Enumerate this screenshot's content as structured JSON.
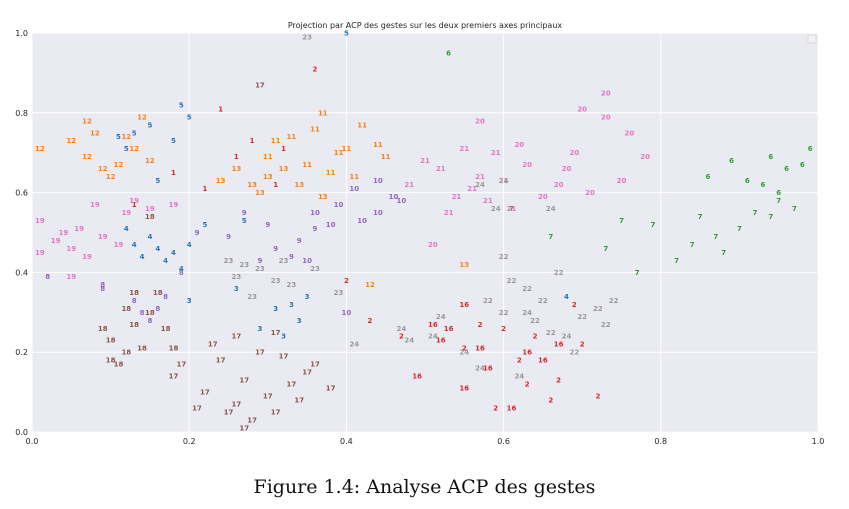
{
  "chart_data": {
    "type": "scatter",
    "title": "Projection par ACP des gestes sur les deux premiers axes principaux",
    "xlim": [
      0.0,
      1.0
    ],
    "ylim": [
      0.0,
      1.0
    ],
    "xticks": [
      "0.0",
      "0.2",
      "0.4",
      "0.6",
      "0.8",
      "1.0"
    ],
    "yticks": [
      "0.0",
      "0.2",
      "0.4",
      "0.6",
      "0.8",
      "1.0"
    ],
    "grid": true,
    "background": "#eaeaf2",
    "series": [
      {
        "label": "1",
        "color": "#d62728",
        "points": [
          [
            0.24,
            0.81
          ],
          [
            0.32,
            0.71
          ],
          [
            0.18,
            0.65
          ],
          [
            0.13,
            0.57
          ],
          [
            0.26,
            0.69
          ],
          [
            0.31,
            0.62
          ],
          [
            0.22,
            0.61
          ],
          [
            0.28,
            0.73
          ]
        ]
      },
      {
        "label": "2",
        "color": "#d62728",
        "points": [
          [
            0.36,
            0.91
          ],
          [
            0.4,
            0.38
          ],
          [
            0.62,
            0.18
          ],
          [
            0.66,
            0.08
          ],
          [
            0.7,
            0.22
          ],
          [
            0.57,
            0.27
          ],
          [
            0.59,
            0.06
          ],
          [
            0.64,
            0.24
          ],
          [
            0.55,
            0.21
          ],
          [
            0.67,
            0.13
          ],
          [
            0.63,
            0.12
          ],
          [
            0.72,
            0.09
          ],
          [
            0.47,
            0.24
          ],
          [
            0.69,
            0.32
          ],
          [
            0.43,
            0.28
          ],
          [
            0.6,
            0.26
          ]
        ]
      },
      {
        "label": "3",
        "color": "#1f77b4",
        "points": [
          [
            0.33,
            0.32
          ],
          [
            0.35,
            0.34
          ],
          [
            0.29,
            0.26
          ],
          [
            0.31,
            0.31
          ],
          [
            0.2,
            0.33
          ],
          [
            0.34,
            0.28
          ],
          [
            0.26,
            0.36
          ],
          [
            0.32,
            0.24
          ]
        ]
      },
      {
        "label": "4",
        "color": "#1f77b4",
        "points": [
          [
            0.15,
            0.49
          ],
          [
            0.14,
            0.44
          ],
          [
            0.18,
            0.45
          ],
          [
            0.16,
            0.46
          ],
          [
            0.12,
            0.51
          ],
          [
            0.17,
            0.43
          ],
          [
            0.2,
            0.47
          ],
          [
            0.68,
            0.34
          ],
          [
            0.13,
            0.47
          ],
          [
            0.19,
            0.41
          ]
        ]
      },
      {
        "label": "5",
        "color": "#1f77b4",
        "points": [
          [
            0.19,
            0.82
          ],
          [
            0.11,
            0.74
          ],
          [
            0.15,
            0.77
          ],
          [
            0.18,
            0.73
          ],
          [
            0.12,
            0.71
          ],
          [
            0.2,
            0.79
          ],
          [
            0.16,
            0.63
          ],
          [
            0.13,
            0.75
          ],
          [
            0.27,
            0.53
          ],
          [
            0.22,
            0.52
          ],
          [
            0.4,
            1.0
          ]
        ]
      },
      {
        "label": "6",
        "color": "#2ca02c",
        "points": [
          [
            0.53,
            0.95
          ],
          [
            0.86,
            0.64
          ],
          [
            0.93,
            0.62
          ],
          [
            0.96,
            0.66
          ],
          [
            0.99,
            0.71
          ],
          [
            0.89,
            0.68
          ],
          [
            0.95,
            0.6
          ],
          [
            0.91,
            0.63
          ],
          [
            0.94,
            0.69
          ],
          [
            0.98,
            0.67
          ]
        ]
      },
      {
        "label": "7",
        "color": "#2ca02c",
        "points": [
          [
            0.75,
            0.53
          ],
          [
            0.92,
            0.55
          ],
          [
            0.87,
            0.49
          ],
          [
            0.95,
            0.58
          ],
          [
            0.9,
            0.51
          ],
          [
            0.82,
            0.43
          ],
          [
            0.84,
            0.47
          ],
          [
            0.73,
            0.46
          ],
          [
            0.77,
            0.4
          ],
          [
            0.94,
            0.54
          ],
          [
            0.88,
            0.45
          ],
          [
            0.61,
            0.56
          ],
          [
            0.66,
            0.49
          ],
          [
            0.97,
            0.56
          ],
          [
            0.79,
            0.52
          ],
          [
            0.85,
            0.54
          ]
        ]
      },
      {
        "label": "8",
        "color": "#9467bd",
        "points": [
          [
            0.14,
            0.3
          ],
          [
            0.15,
            0.28
          ],
          [
            0.16,
            0.31
          ],
          [
            0.09,
            0.37
          ],
          [
            0.02,
            0.39
          ],
          [
            0.09,
            0.36
          ],
          [
            0.17,
            0.34
          ],
          [
            0.13,
            0.33
          ],
          [
            0.19,
            0.4
          ]
        ]
      },
      {
        "label": "9",
        "color": "#9467bd",
        "points": [
          [
            0.3,
            0.52
          ],
          [
            0.34,
            0.48
          ],
          [
            0.27,
            0.55
          ],
          [
            0.31,
            0.46
          ],
          [
            0.25,
            0.49
          ],
          [
            0.36,
            0.51
          ],
          [
            0.21,
            0.5
          ],
          [
            0.29,
            0.43
          ],
          [
            0.33,
            0.44
          ]
        ]
      },
      {
        "label": "10",
        "color": "#9467bd",
        "points": [
          [
            0.44,
            0.55
          ],
          [
            0.39,
            0.57
          ],
          [
            0.42,
            0.53
          ],
          [
            0.46,
            0.59
          ],
          [
            0.36,
            0.55
          ],
          [
            0.41,
            0.61
          ],
          [
            0.38,
            0.52
          ],
          [
            0.44,
            0.63
          ],
          [
            0.4,
            0.3
          ],
          [
            0.35,
            0.43
          ],
          [
            0.47,
            0.58
          ]
        ]
      },
      {
        "label": "11",
        "color": "#ff7f0e",
        "points": [
          [
            0.33,
            0.74
          ],
          [
            0.37,
            0.8
          ],
          [
            0.4,
            0.71
          ],
          [
            0.35,
            0.67
          ],
          [
            0.42,
            0.77
          ],
          [
            0.38,
            0.65
          ],
          [
            0.3,
            0.69
          ],
          [
            0.41,
            0.64
          ],
          [
            0.39,
            0.7
          ],
          [
            0.36,
            0.76
          ],
          [
            0.31,
            0.73
          ],
          [
            0.44,
            0.72
          ],
          [
            0.45,
            0.69
          ]
        ]
      },
      {
        "label": "12",
        "color": "#ff7f0e",
        "points": [
          [
            0.07,
            0.78
          ],
          [
            0.05,
            0.73
          ],
          [
            0.09,
            0.66
          ],
          [
            0.13,
            0.71
          ],
          [
            0.1,
            0.64
          ],
          [
            0.07,
            0.69
          ],
          [
            0.14,
            0.79
          ],
          [
            0.12,
            0.74
          ],
          [
            0.15,
            0.68
          ],
          [
            0.01,
            0.71
          ],
          [
            0.43,
            0.37
          ],
          [
            0.08,
            0.75
          ],
          [
            0.11,
            0.67
          ]
        ]
      },
      {
        "label": "13",
        "color": "#ff7f0e",
        "points": [
          [
            0.26,
            0.66
          ],
          [
            0.3,
            0.64
          ],
          [
            0.28,
            0.62
          ],
          [
            0.34,
            0.62
          ],
          [
            0.37,
            0.59
          ],
          [
            0.24,
            0.63
          ],
          [
            0.29,
            0.6
          ],
          [
            0.55,
            0.42
          ],
          [
            0.32,
            0.66
          ]
        ]
      },
      {
        "label": "16",
        "color": "#d62728",
        "points": [
          [
            0.55,
            0.32
          ],
          [
            0.51,
            0.27
          ],
          [
            0.57,
            0.21
          ],
          [
            0.52,
            0.23
          ],
          [
            0.58,
            0.16
          ],
          [
            0.55,
            0.11
          ],
          [
            0.61,
            0.06
          ],
          [
            0.49,
            0.14
          ],
          [
            0.63,
            0.2
          ],
          [
            0.65,
            0.18
          ],
          [
            0.67,
            0.22
          ],
          [
            0.53,
            0.26
          ]
        ]
      },
      {
        "label": "17",
        "color": "#8c564b",
        "points": [
          [
            0.29,
            0.87
          ],
          [
            0.18,
            0.14
          ],
          [
            0.26,
            0.07
          ],
          [
            0.31,
            0.05
          ],
          [
            0.28,
            0.03
          ],
          [
            0.22,
            0.1
          ],
          [
            0.33,
            0.12
          ],
          [
            0.35,
            0.15
          ],
          [
            0.29,
            0.2
          ],
          [
            0.24,
            0.18
          ],
          [
            0.27,
            0.13
          ],
          [
            0.3,
            0.09
          ],
          [
            0.21,
            0.06
          ],
          [
            0.32,
            0.19
          ],
          [
            0.36,
            0.17
          ],
          [
            0.25,
            0.05
          ],
          [
            0.19,
            0.17
          ],
          [
            0.34,
            0.08
          ],
          [
            0.38,
            0.11
          ],
          [
            0.23,
            0.22
          ],
          [
            0.27,
            0.01
          ],
          [
            0.31,
            0.25
          ],
          [
            0.26,
            0.24
          ]
        ]
      },
      {
        "label": "18",
        "color": "#8c564b",
        "points": [
          [
            0.15,
            0.3
          ],
          [
            0.1,
            0.23
          ],
          [
            0.12,
            0.2
          ],
          [
            0.09,
            0.26
          ],
          [
            0.13,
            0.27
          ],
          [
            0.14,
            0.21
          ],
          [
            0.11,
            0.17
          ],
          [
            0.18,
            0.21
          ],
          [
            0.16,
            0.35
          ],
          [
            0.12,
            0.31
          ],
          [
            0.15,
            0.54
          ],
          [
            0.1,
            0.18
          ],
          [
            0.17,
            0.26
          ],
          [
            0.13,
            0.35
          ]
        ]
      },
      {
        "label": "19",
        "color": "#e377c2",
        "points": [
          [
            0.01,
            0.53
          ],
          [
            0.03,
            0.48
          ],
          [
            0.05,
            0.46
          ],
          [
            0.06,
            0.51
          ],
          [
            0.08,
            0.57
          ],
          [
            0.05,
            0.39
          ],
          [
            0.11,
            0.47
          ],
          [
            0.09,
            0.49
          ],
          [
            0.12,
            0.55
          ],
          [
            0.15,
            0.56
          ],
          [
            0.18,
            0.57
          ],
          [
            0.01,
            0.45
          ],
          [
            0.07,
            0.44
          ],
          [
            0.13,
            0.58
          ],
          [
            0.04,
            0.5
          ]
        ]
      },
      {
        "label": "20",
        "color": "#e377c2",
        "points": [
          [
            0.57,
            0.78
          ],
          [
            0.63,
            0.67
          ],
          [
            0.69,
            0.7
          ],
          [
            0.73,
            0.79
          ],
          [
            0.75,
            0.63
          ],
          [
            0.71,
            0.6
          ],
          [
            0.76,
            0.75
          ],
          [
            0.68,
            0.66
          ],
          [
            0.73,
            0.85
          ],
          [
            0.51,
            0.47
          ],
          [
            0.7,
            0.81
          ],
          [
            0.65,
            0.59
          ],
          [
            0.78,
            0.69
          ],
          [
            0.62,
            0.72
          ],
          [
            0.67,
            0.62
          ]
        ]
      },
      {
        "label": "21",
        "color": "#e377c2",
        "points": [
          [
            0.55,
            0.71
          ],
          [
            0.57,
            0.64
          ],
          [
            0.61,
            0.56
          ],
          [
            0.54,
            0.59
          ],
          [
            0.5,
            0.68
          ],
          [
            0.53,
            0.55
          ],
          [
            0.56,
            0.61
          ],
          [
            0.59,
            0.7
          ],
          [
            0.48,
            0.62
          ],
          [
            0.6,
            0.63
          ],
          [
            0.52,
            0.66
          ],
          [
            0.58,
            0.58
          ]
        ]
      },
      {
        "label": "22",
        "color": "#999999",
        "points": [
          [
            0.6,
            0.44
          ],
          [
            0.61,
            0.38
          ],
          [
            0.67,
            0.4
          ],
          [
            0.63,
            0.36
          ],
          [
            0.65,
            0.33
          ],
          [
            0.7,
            0.29
          ],
          [
            0.72,
            0.31
          ],
          [
            0.74,
            0.33
          ],
          [
            0.66,
            0.25
          ],
          [
            0.69,
            0.2
          ],
          [
            0.6,
            0.3
          ],
          [
            0.58,
            0.33
          ],
          [
            0.73,
            0.27
          ],
          [
            0.64,
            0.28
          ]
        ]
      },
      {
        "label": "23",
        "color": "#999999",
        "points": [
          [
            0.35,
            0.99
          ],
          [
            0.29,
            0.41
          ],
          [
            0.31,
            0.38
          ],
          [
            0.27,
            0.42
          ],
          [
            0.33,
            0.37
          ],
          [
            0.36,
            0.41
          ],
          [
            0.25,
            0.43
          ],
          [
            0.39,
            0.35
          ],
          [
            0.28,
            0.34
          ],
          [
            0.32,
            0.43
          ],
          [
            0.26,
            0.39
          ]
        ]
      },
      {
        "label": "24",
        "color": "#999999",
        "points": [
          [
            0.6,
            0.63
          ],
          [
            0.57,
            0.62
          ],
          [
            0.59,
            0.56
          ],
          [
            0.66,
            0.56
          ],
          [
            0.55,
            0.2
          ],
          [
            0.51,
            0.24
          ],
          [
            0.48,
            0.23
          ],
          [
            0.47,
            0.26
          ],
          [
            0.41,
            0.22
          ],
          [
            0.52,
            0.29
          ],
          [
            0.62,
            0.14
          ],
          [
            0.57,
            0.16
          ],
          [
            0.68,
            0.24
          ],
          [
            0.63,
            0.3
          ]
        ]
      }
    ]
  },
  "caption": "Figure 1.4: Analyse ACP des gestes"
}
